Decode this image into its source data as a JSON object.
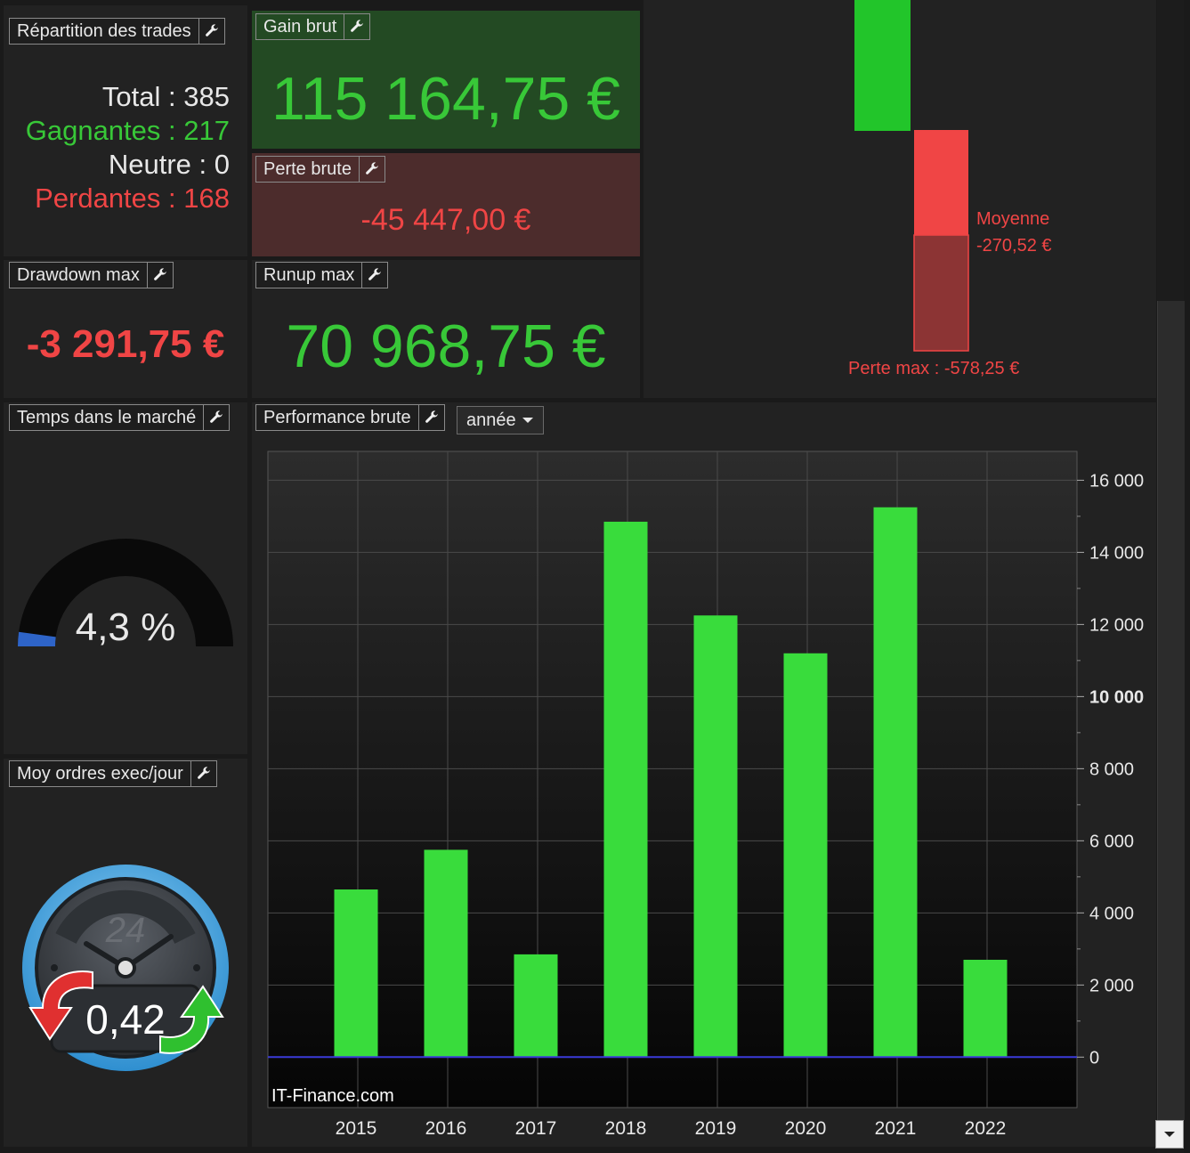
{
  "trades": {
    "title": "Répartition des trades",
    "total_label": "Total :",
    "total_value": "385",
    "winning_label": "Gagnantes :",
    "winning_value": "217",
    "neutral_label": "Neutre :",
    "neutral_value": "0",
    "losing_label": "Perdantes :",
    "losing_value": "168"
  },
  "gain": {
    "title": "Gain brut",
    "value": "115 164,75 €"
  },
  "loss": {
    "title": "Perte brute",
    "value": "-45 447,00 €"
  },
  "drawdown": {
    "title": "Drawdown max",
    "value": "-3 291,75 €"
  },
  "runup": {
    "title": "Runup max",
    "value": "70 968,75 €"
  },
  "loss_chart": {
    "average_label": "Moyenne",
    "average_value": "-270,52 €",
    "max_loss_label": "Perte max : -578,25 €"
  },
  "market_time": {
    "title": "Temps dans le marché",
    "value": "4,3 %",
    "fraction": 0.043
  },
  "orders": {
    "title": "Moy ordres exec/jour",
    "value": "0,42",
    "clock_label": "24"
  },
  "performance": {
    "title": "Performance brute",
    "period_selected": "année",
    "watermark": "IT-Finance.com"
  },
  "chart_data": {
    "type": "bar",
    "categories": [
      "2015",
      "2016",
      "2017",
      "2018",
      "2019",
      "2020",
      "2021",
      "2022"
    ],
    "values": [
      4650,
      5750,
      2850,
      14850,
      12250,
      11200,
      15250,
      2700
    ],
    "ylim": [
      -1400,
      16800
    ],
    "yticks": [
      0,
      2000,
      4000,
      6000,
      8000,
      10000,
      12000,
      14000,
      16000
    ],
    "ytick_labels": [
      "0",
      "2 000",
      "4 000",
      "6 000",
      "8 000",
      "10 000",
      "12 000",
      "14 000",
      "16 000"
    ],
    "grid": true,
    "bar_color": "#39dc3c",
    "zero_line_color": "#3a3ad8"
  },
  "colors": {
    "green": "#38c838",
    "red": "#f04545",
    "gain_bg": "#234a23",
    "loss_bg": "#4c2c2c"
  },
  "icons": {
    "settings": "wrench-icon"
  }
}
